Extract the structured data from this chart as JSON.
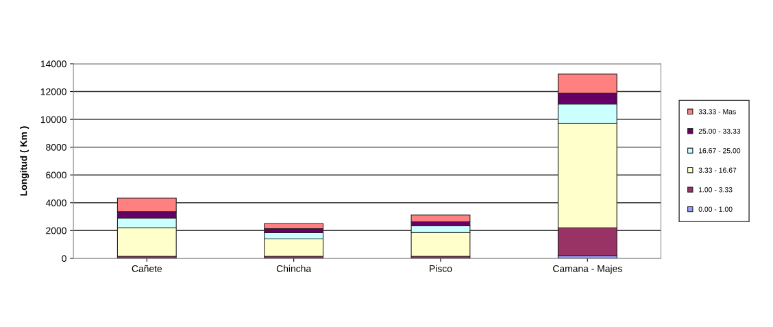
{
  "chart_data": {
    "type": "bar",
    "stacked": true,
    "ylabel": "Longitud ( Km )",
    "categories": [
      "Cañete",
      "Chincha",
      "Pisco",
      "Camana - Majes"
    ],
    "series": [
      {
        "name": "0.00 - 1.00",
        "color": "#9999ff",
        "values": [
          null,
          null,
          null,
          200
        ]
      },
      {
        "name": "1.00 - 3.33",
        "color": "#993366",
        "values": [
          150,
          150,
          150,
          2000
        ]
      },
      {
        "name": "3.33 - 16.67",
        "color": "#ffffcc",
        "values": [
          2050,
          1250,
          1700,
          7500
        ]
      },
      {
        "name": "16.67 - 25.00",
        "color": "#ccffff",
        "values": [
          700,
          450,
          500,
          1400
        ]
      },
      {
        "name": "25.00 - 33.33",
        "color": "#660066",
        "values": [
          460,
          280,
          280,
          780
        ]
      },
      {
        "name": "33.33 - Mas",
        "color": "#ff8080",
        "values": [
          970,
          380,
          490,
          1380
        ]
      }
    ],
    "ylim": [
      0,
      14000
    ],
    "yticks": [
      0,
      2000,
      4000,
      6000,
      8000,
      10000,
      12000,
      14000
    ],
    "grid": "y",
    "legend": "right"
  }
}
